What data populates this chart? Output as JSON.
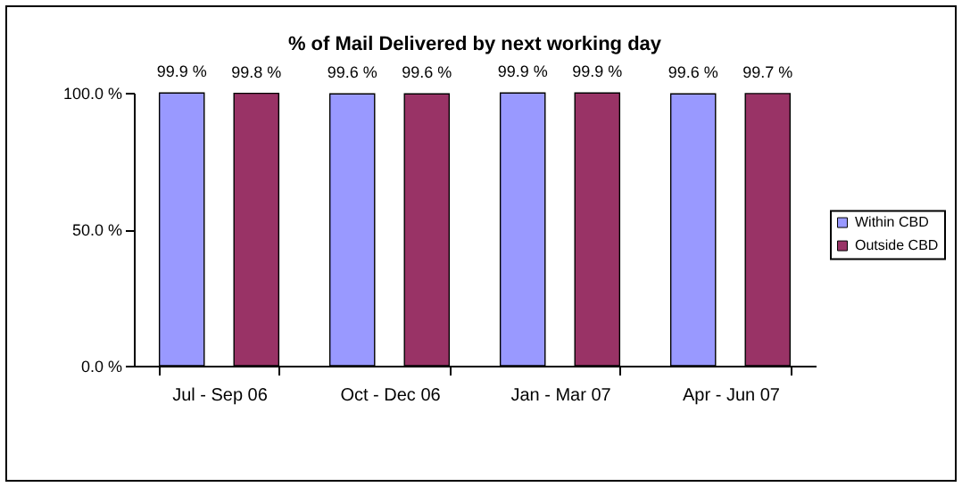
{
  "chart_data": {
    "type": "bar",
    "title": "% of Mail Delivered by next working day",
    "categories": [
      "Jul - Sep 06",
      "Oct - Dec 06",
      "Jan - Mar 07",
      "Apr - Jun 07"
    ],
    "series": [
      {
        "name": "Within CBD",
        "color": "#9999ff",
        "values": [
          99.9,
          99.6,
          99.9,
          99.6
        ],
        "value_labels": [
          "99.9 %",
          "99.6 %",
          "99.9 %",
          "99.6 %"
        ]
      },
      {
        "name": "Outside CBD",
        "color": "#993366",
        "values": [
          99.8,
          99.6,
          99.9,
          99.7
        ],
        "value_labels": [
          "99.8 %",
          "99.6 %",
          "99.9 %",
          "99.7 %"
        ]
      }
    ],
    "ylim": [
      0,
      100
    ],
    "yticks": [
      {
        "value": 0,
        "label": "0.0 %"
      },
      {
        "value": 50,
        "label": "50.0 %"
      },
      {
        "value": 100,
        "label": "100.0 %"
      }
    ],
    "legend": "right"
  }
}
